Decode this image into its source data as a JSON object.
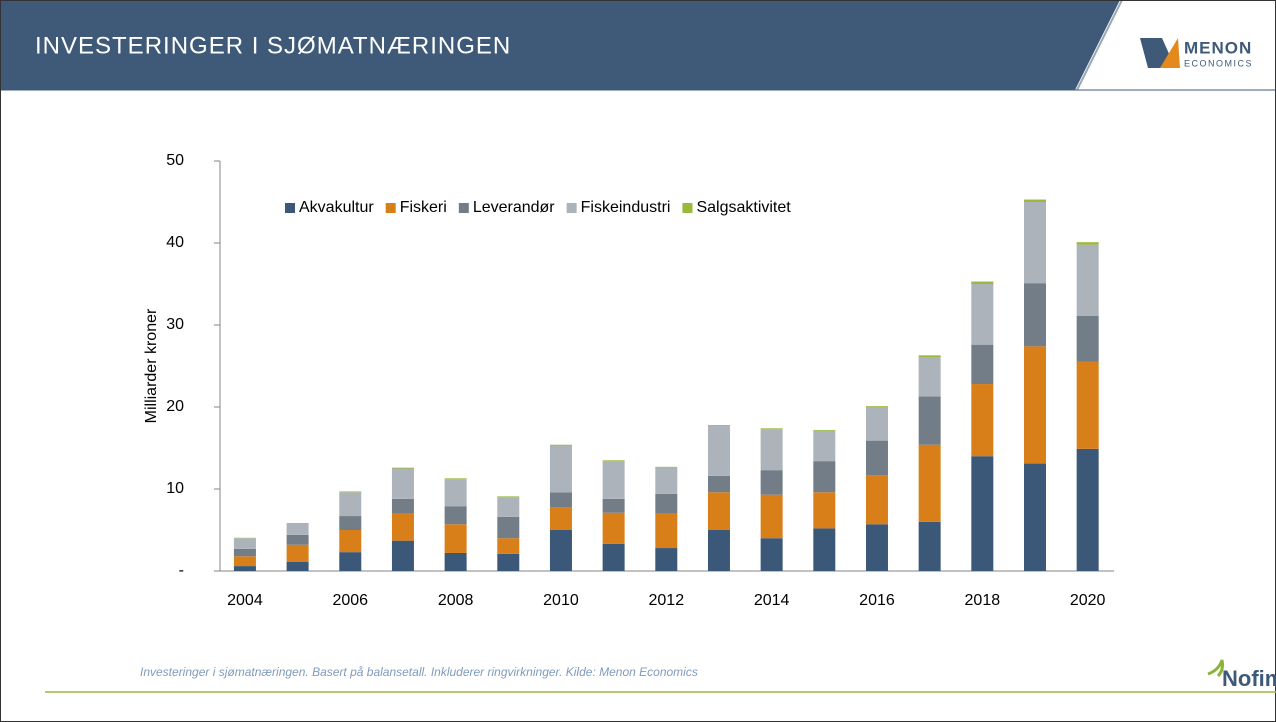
{
  "header": {
    "title": "INVESTERINGER I SJØMATNÆRINGEN",
    "logo": "MENON",
    "logo_sub": "ECONOMICS"
  },
  "chart_data": {
    "type": "stacked_bar",
    "y_label": "Milliarder kroner",
    "categories": [
      "2004",
      null,
      "2006",
      null,
      "2008",
      null,
      "2010",
      null,
      "2012",
      null,
      "2014",
      null,
      "2016",
      null,
      "2018",
      null,
      "2020"
    ],
    "series": [
      {
        "name": "Akvakultur",
        "color": "#3b5878",
        "values": [
          0.6,
          1.1,
          2.3,
          3.7,
          2.2,
          2.1,
          5.0,
          3.3,
          2.8,
          5.0,
          4.0,
          5.2,
          5.7,
          6.0,
          14.0,
          13.1,
          14.9
        ]
      },
      {
        "name": "Fiskeri",
        "color": "#d97f1a",
        "values": [
          1.2,
          2.1,
          2.7,
          3.3,
          3.5,
          1.9,
          2.8,
          3.8,
          4.2,
          4.6,
          5.3,
          4.4,
          6.0,
          9.4,
          8.8,
          14.3,
          10.6
        ]
      },
      {
        "name": "Leverandør",
        "color": "#737d87",
        "values": [
          0.9,
          1.2,
          1.7,
          1.8,
          2.2,
          2.6,
          1.8,
          1.7,
          2.4,
          2.0,
          3.0,
          3.8,
          4.2,
          5.9,
          4.8,
          7.7,
          5.6
        ]
      },
      {
        "name": "Fiskeindustri",
        "color": "#adb3ba",
        "values": [
          1.3,
          1.4,
          2.9,
          3.7,
          3.3,
          2.4,
          5.7,
          4.6,
          3.2,
          6.1,
          5.0,
          3.7,
          4.1,
          4.8,
          7.4,
          9.9,
          8.7
        ]
      },
      {
        "name": "Salgsaktivitet",
        "color": "#9ab83a",
        "values": [
          0.05,
          0.05,
          0.1,
          0.1,
          0.1,
          0.1,
          0.1,
          0.1,
          0.1,
          0.1,
          0.1,
          0.1,
          0.1,
          0.2,
          0.3,
          0.3,
          0.3
        ]
      }
    ],
    "ylim": [
      0,
      50
    ],
    "yticks": [
      {
        "value": 0,
        "label": "-"
      },
      10,
      20,
      30,
      40,
      50
    ],
    "legend": "top-left"
  },
  "footer": {
    "note": "Investeringer i sjømatnæringen. Basert på balansetall. Inkluderer ringvirkninger. Kilde: Menon Economics",
    "brand": "Nofima"
  }
}
